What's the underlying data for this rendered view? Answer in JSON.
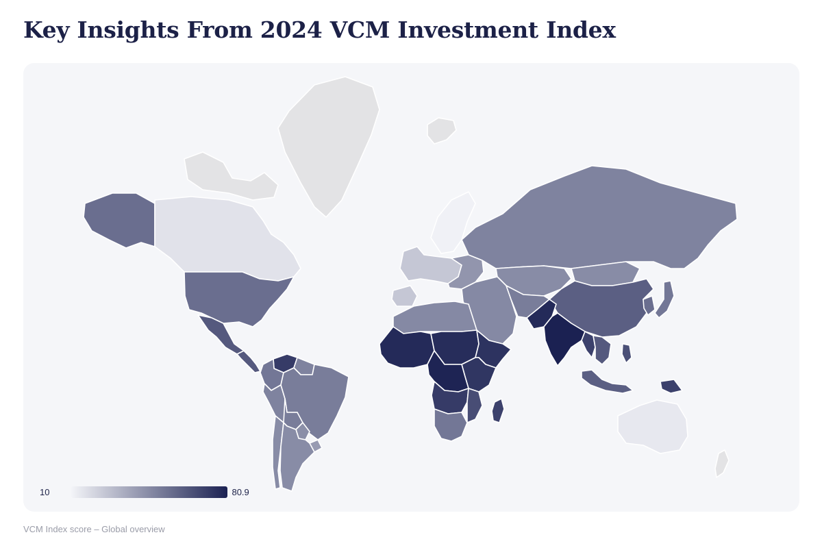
{
  "title": "Key Insights From 2024 VCM Investment Index",
  "caption": "VCM Index score – Global overview",
  "legend": {
    "min_label": "10",
    "max_label": "80.9",
    "min_value": 10,
    "max_value": 80.9,
    "color_low": "#f3f4f8",
    "color_high": "#1b2152"
  },
  "colors": {
    "no_data": "#e3e3e5",
    "no_data_light": "#eaeaec",
    "background": "#f5f6f9",
    "border": "#ffffff",
    "title": "#1c2147"
  },
  "map_regions": [
    {
      "id": "alaska",
      "score": 55
    },
    {
      "id": "canada",
      "score": 16
    },
    {
      "id": "canada-islands",
      "score": null
    },
    {
      "id": "greenland",
      "score": null
    },
    {
      "id": "iceland",
      "score": null
    },
    {
      "id": "usa",
      "score": 55
    },
    {
      "id": "mexico",
      "score": 62
    },
    {
      "id": "central-america",
      "score": 62
    },
    {
      "id": "venezuela",
      "score": 72
    },
    {
      "id": "colombia",
      "score": 52
    },
    {
      "id": "guianas",
      "score": 48
    },
    {
      "id": "brazil",
      "score": 50
    },
    {
      "id": "peru",
      "score": 48
    },
    {
      "id": "bolivia",
      "score": 50
    },
    {
      "id": "paraguay",
      "score": 44
    },
    {
      "id": "chile",
      "score": 45
    },
    {
      "id": "argentina",
      "score": 45
    },
    {
      "id": "uruguay",
      "score": 40
    },
    {
      "id": "scandinavia",
      "score": 11
    },
    {
      "id": "western-europe",
      "score": 25
    },
    {
      "id": "iberia",
      "score": 25
    },
    {
      "id": "eastern-europe",
      "score": 42
    },
    {
      "id": "russia",
      "score": 48
    },
    {
      "id": "kazakhstan",
      "score": 45
    },
    {
      "id": "mongolia",
      "score": 45
    },
    {
      "id": "china",
      "score": 60
    },
    {
      "id": "japan",
      "score": 52
    },
    {
      "id": "korea",
      "score": 55
    },
    {
      "id": "middle-east",
      "score": 46
    },
    {
      "id": "iran-afghanistan",
      "score": 50
    },
    {
      "id": "pakistan",
      "score": 78
    },
    {
      "id": "india",
      "score": 80.9
    },
    {
      "id": "myanmar",
      "score": 70
    },
    {
      "id": "southeast-asia",
      "score": 62
    },
    {
      "id": "indonesia",
      "score": 60
    },
    {
      "id": "philippines",
      "score": 65
    },
    {
      "id": "png",
      "score": 70
    },
    {
      "id": "australia",
      "score": 14
    },
    {
      "id": "new-zealand",
      "score": null
    },
    {
      "id": "north-africa",
      "score": 46
    },
    {
      "id": "west-africa",
      "score": 78
    },
    {
      "id": "sahel-central",
      "score": 77
    },
    {
      "id": "east-africa",
      "score": 74
    },
    {
      "id": "horn-of-africa",
      "score": 75
    },
    {
      "id": "central-africa",
      "score": 80
    },
    {
      "id": "angola-zambia",
      "score": 72
    },
    {
      "id": "mozambique",
      "score": 66
    },
    {
      "id": "southern-africa",
      "score": 52
    },
    {
      "id": "madagascar",
      "score": 70
    }
  ]
}
